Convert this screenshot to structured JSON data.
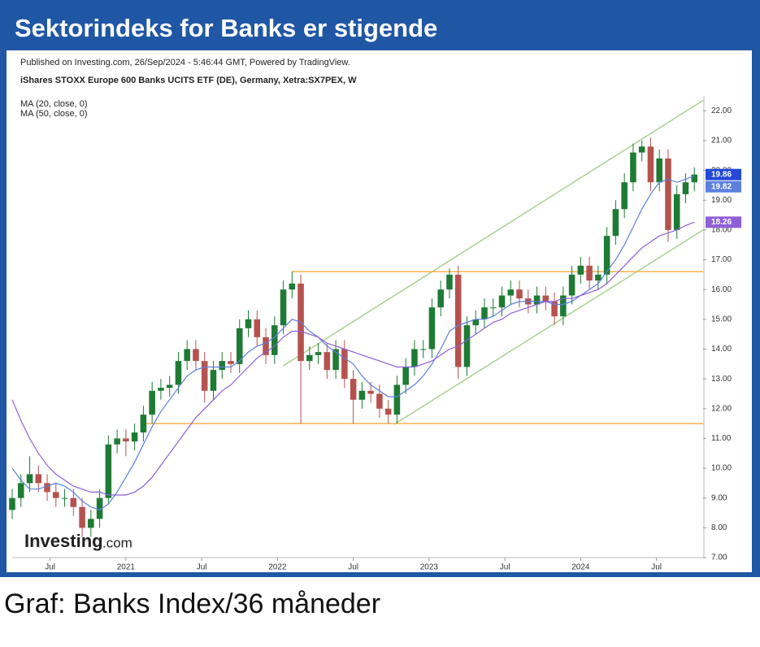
{
  "header": {
    "title": "Sektorindeks for Banks er stigende"
  },
  "caption": "Graf: Banks Index/36 måneder",
  "chart_data": {
    "type": "candlestick",
    "published": "Published on Investing.com, 26/Sep/2024 - 5:46:44 GMT, Powered by TradingView.",
    "subtitle": "iShares STOXX Europe 600 Banks UCITS ETF (DE), Germany, Xetra:SX7PEX, W",
    "watermark": {
      "brand": "Investing",
      "suffix": ".com"
    },
    "up_color": "#1e7a34",
    "down_color": "#b5524f",
    "price_label_color": "#2448d8",
    "x": [
      -39,
      -36,
      -33,
      -30,
      -27,
      -24,
      -21,
      -18,
      -15,
      -12,
      -9,
      -6,
      -3,
      0,
      3,
      6,
      9,
      12,
      15,
      18,
      21,
      24,
      27,
      30,
      33,
      36,
      39,
      42,
      45,
      48,
      51,
      54,
      57,
      60,
      63,
      66,
      69,
      72,
      75,
      78,
      81,
      84,
      87,
      90,
      93,
      96,
      99,
      102,
      105,
      108,
      111,
      114,
      117,
      120,
      123,
      126,
      129,
      132,
      135,
      138,
      141,
      144,
      147,
      150,
      153,
      156,
      159,
      162,
      165,
      168,
      171,
      174,
      177,
      180,
      183,
      186,
      189,
      192,
      195
    ],
    "open": [
      8.6,
      9.0,
      9.5,
      9.8,
      9.5,
      9.2,
      9.0,
      9.0,
      8.7,
      8.0,
      8.3,
      9.0,
      10.8,
      11.0,
      10.9,
      11.2,
      11.8,
      12.6,
      12.7,
      12.8,
      13.6,
      14.0,
      13.6,
      12.6,
      13.3,
      13.6,
      13.5,
      14.7,
      15.0,
      14.4,
      13.8,
      14.8,
      16.0,
      16.2,
      13.6,
      13.8,
      13.9,
      13.3,
      14.0,
      13.0,
      12.3,
      12.6,
      12.5,
      12.0,
      11.8,
      12.8,
      13.4,
      14.0,
      14.0,
      15.4,
      16.0,
      16.5,
      13.4,
      14.8,
      15.0,
      15.4,
      15.4,
      15.8,
      16.0,
      15.7,
      15.5,
      15.8,
      15.6,
      15.1,
      15.8,
      16.5,
      16.8,
      16.3,
      16.5,
      17.8,
      18.7,
      19.6,
      20.6,
      20.8,
      19.6,
      20.4,
      18.0,
      19.2,
      19.6
    ],
    "high": [
      9.3,
      9.8,
      10.4,
      10.1,
      9.8,
      9.5,
      9.3,
      9.3,
      9.0,
      8.6,
      9.3,
      11.1,
      11.3,
      11.3,
      11.5,
      12.1,
      12.9,
      13.0,
      13.1,
      13.9,
      14.3,
      14.3,
      13.9,
      13.6,
      13.9,
      13.9,
      15.0,
      15.3,
      15.3,
      14.7,
      15.1,
      16.3,
      16.6,
      16.5,
      14.1,
      14.2,
      14.2,
      14.3,
      14.3,
      13.3,
      12.9,
      12.9,
      12.8,
      12.3,
      13.1,
      13.7,
      14.3,
      14.3,
      15.7,
      16.3,
      16.7,
      16.8,
      15.1,
      15.3,
      15.7,
      15.7,
      16.1,
      16.3,
      16.3,
      16.0,
      16.1,
      16.1,
      15.9,
      16.1,
      16.8,
      17.1,
      17.1,
      16.8,
      18.1,
      19.0,
      19.9,
      20.9,
      21.0,
      21.1,
      20.7,
      20.7,
      19.5,
      19.9,
      20.1
    ],
    "low": [
      8.3,
      8.7,
      9.2,
      9.2,
      8.9,
      8.7,
      8.7,
      8.4,
      7.7,
      7.7,
      8.0,
      8.8,
      10.5,
      10.4,
      10.6,
      10.9,
      11.5,
      12.3,
      12.4,
      12.5,
      13.3,
      13.3,
      12.2,
      12.3,
      13.0,
      13.2,
      13.2,
      14.4,
      14.1,
      13.5,
      13.5,
      14.5,
      15.7,
      11.5,
      13.3,
      13.5,
      13.0,
      13.0,
      12.7,
      11.5,
      12.0,
      12.2,
      11.7,
      11.5,
      11.5,
      12.5,
      13.1,
      13.7,
      13.7,
      15.1,
      15.7,
      13.0,
      13.1,
      14.5,
      14.7,
      15.1,
      15.1,
      15.5,
      15.4,
      15.2,
      15.2,
      15.3,
      14.8,
      14.8,
      15.5,
      16.2,
      16.0,
      16.0,
      16.2,
      17.5,
      18.4,
      19.3,
      20.3,
      19.3,
      19.3,
      17.6,
      17.7,
      18.9,
      19.3
    ],
    "close": [
      9.0,
      9.5,
      9.8,
      9.5,
      9.2,
      9.0,
      9.0,
      8.7,
      8.0,
      8.3,
      9.0,
      10.8,
      11.0,
      10.9,
      11.2,
      11.8,
      12.6,
      12.7,
      12.8,
      13.6,
      14.0,
      13.6,
      12.6,
      13.3,
      13.6,
      13.5,
      14.7,
      15.0,
      14.4,
      13.8,
      14.8,
      16.0,
      16.2,
      13.6,
      13.8,
      13.9,
      13.3,
      14.0,
      13.0,
      12.3,
      12.6,
      12.5,
      12.0,
      11.8,
      12.8,
      13.4,
      14.0,
      14.0,
      15.4,
      16.0,
      16.5,
      13.4,
      14.8,
      15.0,
      15.4,
      15.4,
      15.8,
      16.0,
      15.7,
      15.5,
      15.8,
      15.6,
      15.1,
      15.8,
      16.5,
      16.8,
      16.3,
      16.5,
      17.8,
      18.7,
      19.6,
      20.6,
      20.8,
      19.6,
      20.4,
      18.0,
      19.2,
      19.6,
      19.86
    ],
    "indicators": [
      {
        "name": "MA (20, close, 0)",
        "color": "#5d7fe0",
        "values": [
          10.0,
          9.6,
          9.3,
          9.3,
          9.4,
          9.5,
          9.4,
          9.2,
          8.9,
          8.7,
          8.6,
          8.8,
          9.2,
          9.7,
          10.2,
          10.8,
          11.4,
          11.9,
          12.3,
          12.7,
          13.1,
          13.3,
          13.4,
          13.4,
          13.4,
          13.4,
          13.6,
          13.9,
          14.1,
          14.2,
          14.4,
          14.7,
          15.0,
          14.9,
          14.6,
          14.4,
          14.1,
          13.9,
          13.7,
          13.5,
          13.1,
          12.8,
          12.6,
          12.4,
          12.4,
          12.6,
          12.8,
          13.1,
          13.5,
          14.0,
          14.6,
          14.8,
          14.9,
          15.0,
          15.0,
          15.1,
          15.3,
          15.5,
          15.6,
          15.6,
          15.6,
          15.6,
          15.5,
          15.5,
          15.6,
          15.8,
          16.0,
          16.2,
          16.6,
          17.0,
          17.5,
          18.1,
          18.7,
          19.2,
          19.6,
          19.7,
          19.6,
          19.7,
          19.82
        ]
      },
      {
        "name": "MA (50, close, 0)",
        "color": "#8f5fd8",
        "values": [
          12.3,
          11.6,
          11.0,
          10.5,
          10.1,
          9.8,
          9.6,
          9.4,
          9.3,
          9.2,
          9.2,
          9.1,
          9.1,
          9.1,
          9.2,
          9.4,
          9.7,
          10.1,
          10.5,
          10.9,
          11.3,
          11.7,
          12.0,
          12.3,
          12.6,
          12.8,
          13.1,
          13.4,
          13.7,
          13.9,
          14.1,
          14.4,
          14.6,
          14.6,
          14.5,
          14.4,
          14.2,
          14.1,
          14.0,
          13.9,
          13.8,
          13.7,
          13.6,
          13.5,
          13.4,
          13.4,
          13.4,
          13.5,
          13.6,
          13.8,
          14.0,
          14.1,
          14.3,
          14.5,
          14.7,
          14.9,
          15.0,
          15.2,
          15.3,
          15.4,
          15.5,
          15.6,
          15.6,
          15.7,
          15.7,
          15.8,
          15.9,
          16.0,
          16.2,
          16.5,
          16.8,
          17.1,
          17.4,
          17.6,
          17.8,
          17.9,
          18.0,
          18.15,
          18.26
        ]
      }
    ],
    "trend_lines": [
      {
        "color": "#a9d18e",
        "x": [
          54,
          198
        ],
        "values": [
          13.44,
          22.35
        ]
      },
      {
        "color": "#a9d18e",
        "x": [
          92,
          198
        ],
        "values": [
          11.47,
          18.0
        ]
      },
      {
        "color": "#f4b350",
        "x": [
          57,
          198
        ],
        "values": [
          16.6,
          16.6
        ]
      },
      {
        "color": "#f4b350",
        "x": [
          7,
          198
        ],
        "values": [
          11.5,
          11.5
        ]
      }
    ],
    "xlim": [
      -39,
      198
    ],
    "xticks": [
      {
        "value": -26,
        "label": "Jul"
      },
      {
        "value": 0,
        "label": "2021"
      },
      {
        "value": 26,
        "label": "Jul"
      },
      {
        "value": 52,
        "label": "2022"
      },
      {
        "value": 78,
        "label": "Jul"
      },
      {
        "value": 104,
        "label": "2023"
      },
      {
        "value": 130,
        "label": "Jul"
      },
      {
        "value": 156,
        "label": "2024"
      },
      {
        "value": 182,
        "label": "Jul"
      }
    ],
    "ylim": [
      7,
      22.5
    ],
    "yticks": [
      {
        "value": 7,
        "label": "7.00"
      },
      {
        "value": 8,
        "label": "8.00"
      },
      {
        "value": 9,
        "label": "9.00"
      },
      {
        "value": 10,
        "label": "10.00"
      },
      {
        "value": 11,
        "label": "11.00"
      },
      {
        "value": 12,
        "label": "12.00"
      },
      {
        "value": 13,
        "label": "13.00"
      },
      {
        "value": 14,
        "label": "14.00"
      },
      {
        "value": 15,
        "label": "15.00"
      },
      {
        "value": 16,
        "label": "16.00"
      },
      {
        "value": 17,
        "label": "17.00"
      },
      {
        "value": 18,
        "label": "18.00"
      },
      {
        "value": 19,
        "label": "19.00"
      },
      {
        "value": 20,
        "label": "20.00"
      },
      {
        "value": 21,
        "label": "21.00"
      },
      {
        "value": 22,
        "label": "22.00"
      }
    ]
  }
}
